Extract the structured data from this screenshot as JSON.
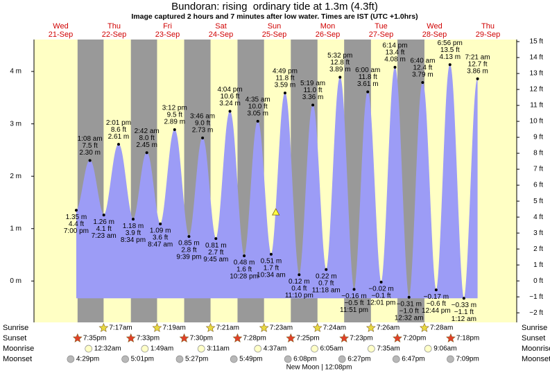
{
  "chart_data": {
    "type": "tide",
    "title": "Bundoran: rising  ordinary tide at 1.3m (4.3ft)",
    "subtitle": "Image captured 2 hours and 7 minutes after low water. Times are IST (UTC +1.0hrs)",
    "days": [
      {
        "weekday": "Wed",
        "date": "21-Sep"
      },
      {
        "weekday": "Thu",
        "date": "22-Sep"
      },
      {
        "weekday": "Fri",
        "date": "23-Sep"
      },
      {
        "weekday": "Sat",
        "date": "24-Sep"
      },
      {
        "weekday": "Sun",
        "date": "25-Sep"
      },
      {
        "weekday": "Mon",
        "date": "26-Sep"
      },
      {
        "weekday": "Tue",
        "date": "27-Sep"
      },
      {
        "weekday": "Wed",
        "date": "28-Sep"
      },
      {
        "weekday": "Thu",
        "date": "29-Sep"
      }
    ],
    "tides": {
      "dates": [
        "21-Sep",
        "22-Sep",
        "22-Sep",
        "22-Sep",
        "22-Sep",
        "23-Sep",
        "23-Sep",
        "23-Sep",
        "23-Sep",
        "24-Sep",
        "24-Sep",
        "24-Sep",
        "24-Sep",
        "25-Sep",
        "25-Sep",
        "25-Sep",
        "25-Sep",
        "26-Sep",
        "26-Sep",
        "26-Sep",
        "26-Sep",
        "27-Sep",
        "27-Sep",
        "27-Sep",
        "28-Sep",
        "28-Sep",
        "28-Sep",
        "28-Sep",
        "29-Sep",
        "29-Sep"
      ],
      "times": [
        "7:00 pm",
        "1:08 am",
        "7:23 am",
        "2:01 pm",
        "8:34 pm",
        "2:42 am",
        "8:47 am",
        "3:12 pm",
        "9:39 pm",
        "3:46 am",
        "9:45 am",
        "4:04 pm",
        "10:28 pm",
        "4:35 am",
        "10:34 am",
        "4:49 pm",
        "11:10 pm",
        "5:19 am",
        "11:18 am",
        "5:32 pm",
        "11:51 pm",
        "6:00 am",
        "12:01 pm",
        "6:14 pm",
        "12:32 am",
        "6:40 am",
        "12:44 pm",
        "6:56 pm",
        "1:12 am",
        "7:21 am"
      ],
      "values": [
        1.35,
        2.3,
        1.26,
        2.61,
        1.18,
        2.45,
        1.09,
        2.89,
        0.85,
        2.73,
        0.81,
        3.24,
        0.48,
        3.05,
        0.51,
        3.59,
        0.12,
        3.36,
        0.22,
        3.89,
        -0.16,
        3.61,
        -0.02,
        4.08,
        -0.31,
        3.79,
        -0.17,
        4.13,
        -0.33,
        3.86
      ],
      "value_labels": [
        "1.35 m",
        "2.30 m",
        "1.26 m",
        "2.61 m",
        "1.18 m",
        "2.45 m",
        "1.09 m",
        "2.89 m",
        "0.85 m",
        "2.73 m",
        "0.81 m",
        "3.24 m",
        "0.48 m",
        "3.05 m",
        "0.51 m",
        "3.59 m",
        "0.12 m",
        "3.36 m",
        "0.22 m",
        "3.89 m",
        "−0.16 m",
        "3.61 m",
        "−0.02 m",
        "4.08 m",
        "−0.31 m",
        "3.79 m",
        "−0.17 m",
        "4.13 m",
        "−0.33 m",
        "3.86 m"
      ],
      "ft_labels": [
        "4.4 ft",
        "7.5 ft",
        "4.1 ft",
        "8.6 ft",
        "3.9 ft",
        "8.0 ft",
        "3.6 ft",
        "9.5 ft",
        "2.8 ft",
        "9.0 ft",
        "2.7 ft",
        "10.6 ft",
        "1.6 ft",
        "10.0 ft",
        "1.7 ft",
        "11.8 ft",
        "0.4 ft",
        "11.0 ft",
        "0.7 ft",
        "12.8 ft",
        "−0.5 ft",
        "11.8 ft",
        "−0.1 ft",
        "13.4 ft",
        "−1.0 ft",
        "12.4 ft",
        "−0.6 ft",
        "13.5 ft",
        "−1.1 ft",
        "12.7 ft"
      ]
    },
    "color": "#9c9cf6",
    "current": {
      "height": 1.3,
      "date": "25-Sep"
    },
    "ylim": [
      -0.79,
      4.61
    ],
    "yticks": [
      {
        "value": 0,
        "label": "0 m"
      },
      {
        "value": 1,
        "label": "1 m"
      },
      {
        "value": 2,
        "label": "2 m"
      },
      {
        "value": 3,
        "label": "3 m"
      },
      {
        "value": 4,
        "label": "4 m"
      }
    ],
    "y2lim": [
      -2.6,
      15.13
    ],
    "y2ticks": [
      {
        "value": -2,
        "label": "−2 ft"
      },
      {
        "value": -1,
        "label": "−1 ft"
      },
      {
        "value": 0,
        "label": "0 ft"
      },
      {
        "value": 1,
        "label": "1 ft"
      },
      {
        "value": 2,
        "label": "2 ft"
      },
      {
        "value": 3,
        "label": "3 ft"
      },
      {
        "value": 4,
        "label": "4 ft"
      },
      {
        "value": 5,
        "label": "5 ft"
      },
      {
        "value": 6,
        "label": "6 ft"
      },
      {
        "value": 7,
        "label": "7 ft"
      },
      {
        "value": 8,
        "label": "8 ft"
      },
      {
        "value": 9,
        "label": "9 ft"
      },
      {
        "value": 10,
        "label": "10 ft"
      },
      {
        "value": 11,
        "label": "11 ft"
      },
      {
        "value": 12,
        "label": "12 ft"
      },
      {
        "value": 13,
        "label": "13 ft"
      },
      {
        "value": 14,
        "label": "14 ft"
      },
      {
        "value": 15,
        "label": "15 ft"
      }
    ],
    "rows": [
      {
        "label": "Sunrise",
        "icon": "sun",
        "color": "#e8d840",
        "dates": [
          "22-Sep",
          "23-Sep",
          "24-Sep",
          "25-Sep",
          "26-Sep",
          "27-Sep",
          "28-Sep"
        ],
        "times": [
          "7:17am",
          "7:19am",
          "7:21am",
          "7:23am",
          "7:24am",
          "7:26am",
          "7:28am"
        ]
      },
      {
        "label": "Sunset",
        "icon": "sun",
        "color": "#e04028",
        "dates": [
          "21-Sep",
          "22-Sep",
          "23-Sep",
          "24-Sep",
          "25-Sep",
          "26-Sep",
          "27-Sep",
          "28-Sep"
        ],
        "times": [
          "7:35pm",
          "7:33pm",
          "7:30pm",
          "7:28pm",
          "7:25pm",
          "7:23pm",
          "7:20pm",
          "7:18pm"
        ]
      },
      {
        "label": "Moonrise",
        "icon": "moon",
        "color": "#ffffc8",
        "dates": [
          "22-Sep",
          "23-Sep",
          "24-Sep",
          "25-Sep",
          "26-Sep",
          "27-Sep",
          "28-Sep"
        ],
        "times": [
          "12:32am",
          "1:49am",
          "3:11am",
          "4:37am",
          "6:05am",
          "7:35am",
          "9:06am"
        ]
      },
      {
        "label": "Moonset",
        "icon": "moon",
        "color": "#b8b8b8",
        "dates": [
          "21-Sep",
          "22-Sep",
          "23-Sep",
          "24-Sep",
          "25-Sep",
          "26-Sep",
          "27-Sep",
          "28-Sep"
        ],
        "times": [
          "4:29pm",
          "5:01pm",
          "5:27pm",
          "5:49pm",
          "6:08pm",
          "6:27pm",
          "6:47pm",
          "7:09pm"
        ]
      }
    ],
    "moon_phase": "New Moon | 12:08pm"
  }
}
